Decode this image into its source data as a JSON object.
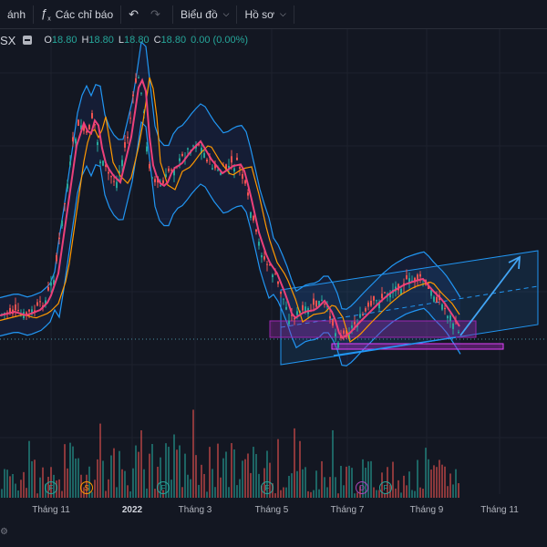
{
  "toolbar": {
    "prev_label": "ánh",
    "indicators_label": "Các chỉ báo",
    "chart_type_label": "Biểu đồ",
    "profile_label": "Hồ sơ",
    "indicators_icon": "function-icon",
    "undo_icon": "undo-icon",
    "redo_icon": "redo-icon"
  },
  "legend": {
    "symbol": "SX",
    "open_key": "O",
    "open_value": "18.80",
    "high_key": "H",
    "high_value": "18.80",
    "low_key": "L",
    "low_value": "18.80",
    "close_key": "C",
    "close_value": "18.80",
    "change": "0.00 (0.00%)"
  },
  "time_axis": {
    "ticks": [
      {
        "label": "Tháng 11",
        "bold": false
      },
      {
        "label": "2022",
        "bold": true
      },
      {
        "label": "Tháng 3",
        "bold": false
      },
      {
        "label": "Tháng 5",
        "bold": false
      },
      {
        "label": "Tháng 7",
        "bold": false
      },
      {
        "label": "Tháng 9",
        "bold": false
      },
      {
        "label": "Tháng 11",
        "bold": false
      }
    ]
  },
  "events": [
    {
      "letter": "F",
      "kind": "earnings"
    },
    {
      "letter": "S",
      "kind": "split"
    },
    {
      "letter": "F",
      "kind": "earnings"
    },
    {
      "letter": "F",
      "kind": "earnings"
    },
    {
      "letter": "D",
      "kind": "dividend"
    },
    {
      "letter": "F",
      "kind": "earnings"
    }
  ],
  "colors": {
    "background": "#131722",
    "up": "#26a69a",
    "down": "#ef5350",
    "bollinger": "#2962ff",
    "ma_fast": "#ec407a",
    "ma_slow": "#ff9800",
    "channel": "#2196f3",
    "zone": "#9c27b0"
  }
}
